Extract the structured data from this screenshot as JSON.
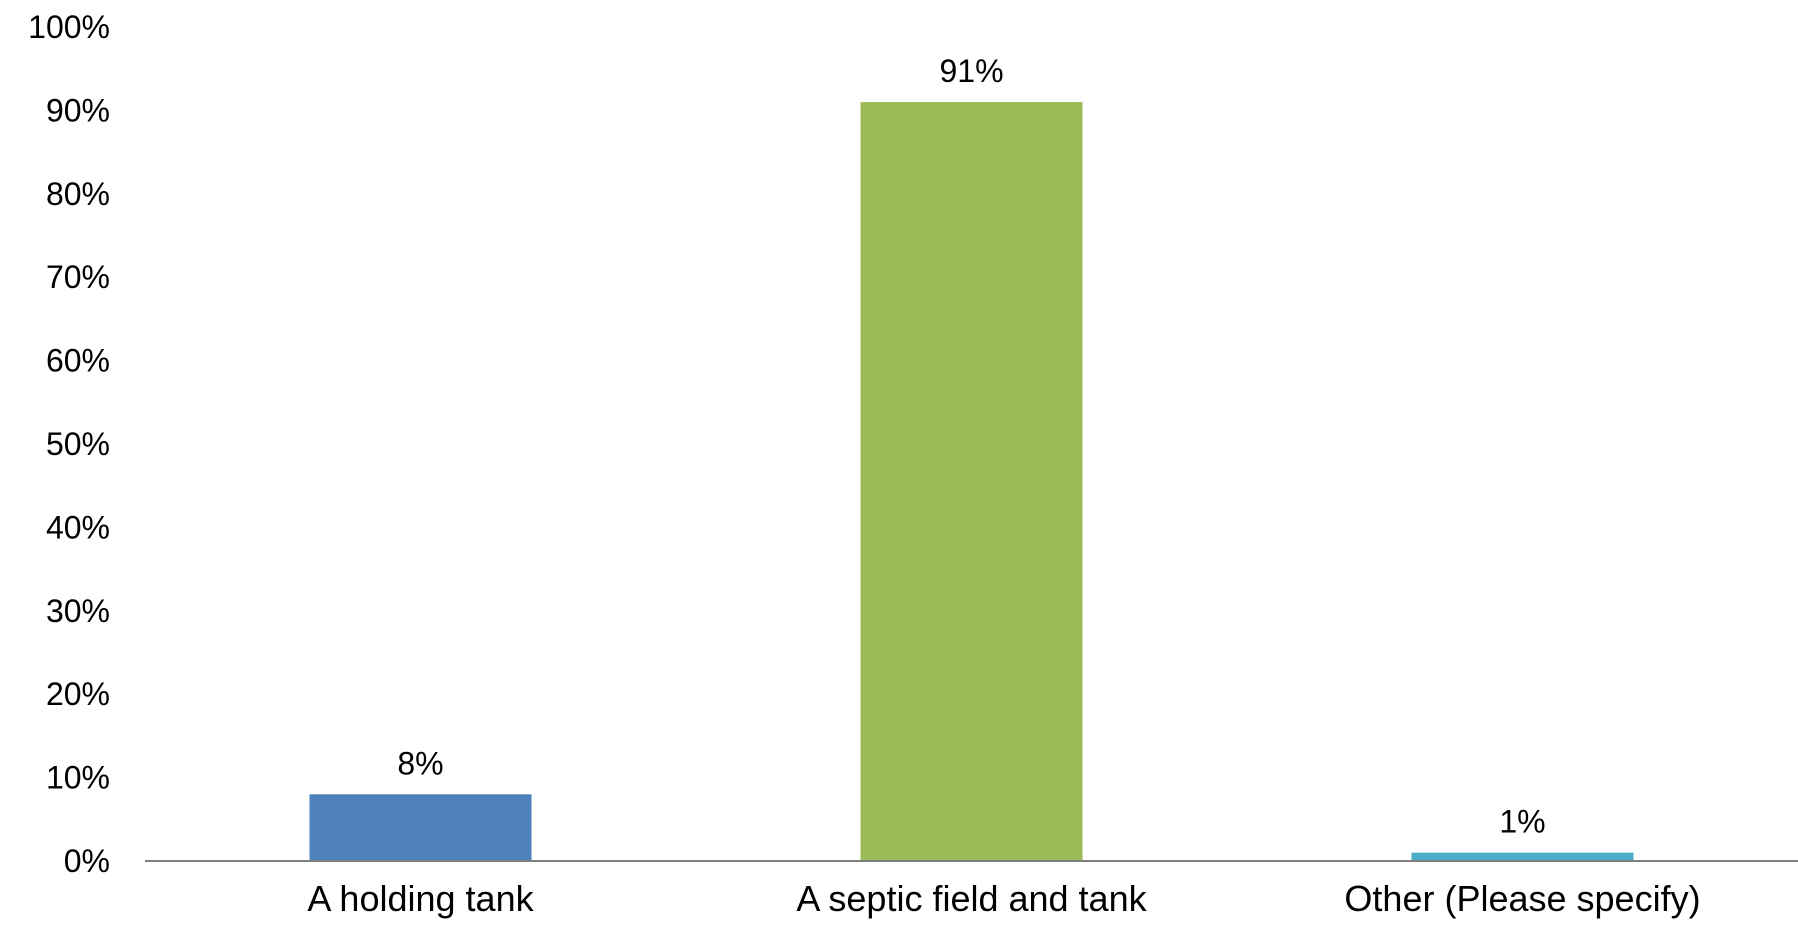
{
  "chart_data": {
    "type": "bar",
    "title": "",
    "xlabel": "",
    "ylabel": "",
    "categories": [
      "A holding tank",
      "A septic field and tank",
      "Other (Please specify)"
    ],
    "values": [
      8,
      91,
      1
    ],
    "data_labels": [
      "8%",
      "91%",
      "1%"
    ],
    "bar_colors": [
      "#4f81bd",
      "#9bbb59",
      "#4bacc6"
    ],
    "ylim": [
      0,
      100
    ],
    "y_ticks": [
      0,
      10,
      20,
      30,
      40,
      50,
      60,
      70,
      80,
      90,
      100
    ],
    "y_tick_labels": [
      "0%",
      "10%",
      "20%",
      "30%",
      "40%",
      "50%",
      "60%",
      "70%",
      "80%",
      "90%",
      "100%"
    ],
    "grid": false,
    "legend": "none",
    "axis_color": "#7f7f7f"
  }
}
